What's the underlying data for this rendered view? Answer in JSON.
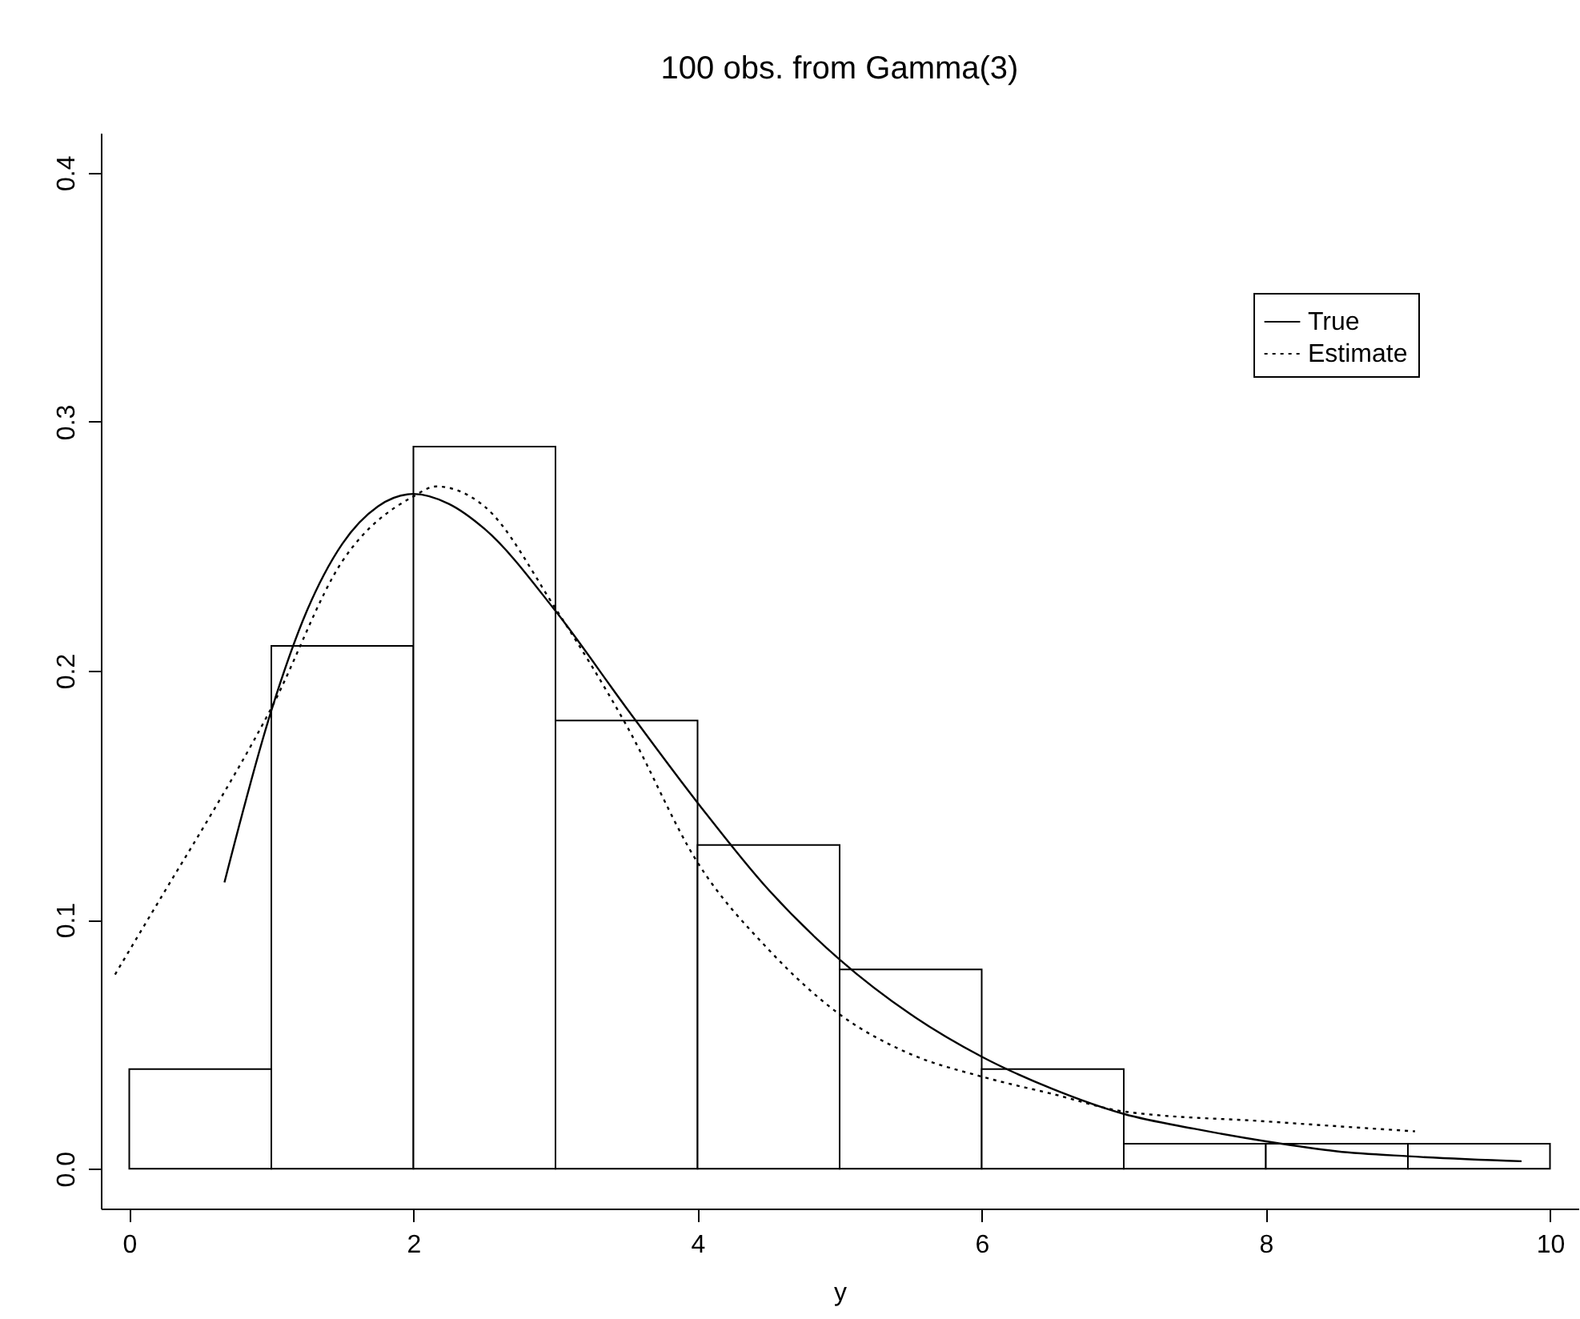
{
  "chart_data": {
    "type": "histogram",
    "title": "100 obs. from Gamma(3)",
    "xlabel": "y",
    "bins": [
      0,
      1,
      2,
      3,
      4,
      5,
      6,
      7,
      8,
      9,
      10
    ],
    "values": [
      0.04,
      0.21,
      0.29,
      0.18,
      0.13,
      0.08,
      0.04,
      0.01,
      0.01,
      0.01
    ],
    "color": "#ffffff",
    "series": [
      {
        "name": "True",
        "type": "line",
        "color": "#000000",
        "line_style": "solid",
        "x": [
          0.67,
          1,
          1.25,
          1.5,
          1.75,
          2,
          2.25,
          2.5,
          3,
          3.5,
          4,
          4.5,
          5,
          5.5,
          6,
          6.5,
          7,
          7.5,
          8,
          8.5,
          9,
          9.8
        ],
        "values": [
          0.115,
          0.184,
          0.224,
          0.251,
          0.266,
          0.271,
          0.267,
          0.257,
          0.224,
          0.185,
          0.147,
          0.112,
          0.084,
          0.062,
          0.045,
          0.032,
          0.022,
          0.016,
          0.011,
          0.007,
          0.005,
          0.003
        ]
      },
      {
        "name": "Estimate",
        "type": "line",
        "color": "#000000",
        "line_style": "dotted",
        "x": [
          -0.1,
          0.33,
          0.5,
          1,
          1.5,
          2,
          2.16,
          2.5,
          3,
          3.5,
          4,
          4.5,
          5,
          5.5,
          6,
          6.5,
          7,
          8,
          9.05
        ],
        "values": [
          0.078,
          0.119,
          0.135,
          0.185,
          0.244,
          0.27,
          0.274,
          0.266,
          0.225,
          0.178,
          0.123,
          0.088,
          0.062,
          0.046,
          0.037,
          0.03,
          0.023,
          0.019,
          0.015
        ]
      }
    ],
    "xlim": [
      -0.2,
      10.2
    ],
    "ylim": [
      -0.016,
      0.416
    ],
    "xticks": [
      0,
      2,
      4,
      6,
      8,
      10
    ],
    "yticks": [
      {
        "value": 0,
        "label": "0.0"
      },
      {
        "value": 0.1,
        "label": "0.1"
      },
      {
        "value": 0.2,
        "label": "0.2"
      },
      {
        "value": 0.3,
        "label": "0.3"
      },
      {
        "value": 0.4,
        "label": "0.4"
      }
    ],
    "grid": false,
    "legend": "top right"
  }
}
